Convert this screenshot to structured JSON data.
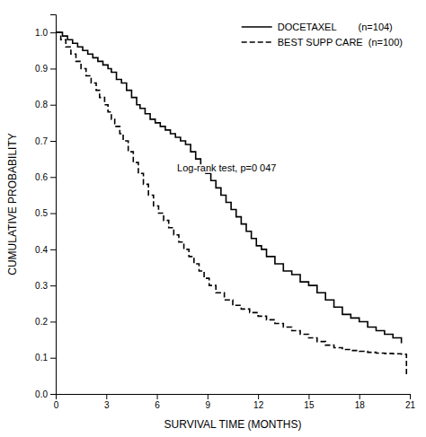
{
  "chart_data": {
    "type": "step",
    "xlabel": "SURVIVAL TIME (MONTHS)",
    "ylabel": "CUMULATIVE PROBABILITY",
    "xlim": [
      0,
      21
    ],
    "ylim": [
      0.0,
      1.05
    ],
    "xticks": [
      0,
      3,
      6,
      9,
      12,
      15,
      18,
      21
    ],
    "yticks": [
      {
        "value": 0.0,
        "label": "0.0"
      },
      0.1,
      0.2,
      0.3,
      0.4,
      0.5,
      0.6,
      0.7,
      0.8,
      0.9,
      {
        "value": 1.0,
        "label": "1.0"
      }
    ],
    "grid": false,
    "legend": "upper right",
    "annotations": [
      {
        "text": "Log-rank test, p=0 047",
        "x": 7.2,
        "y": 0.615
      }
    ],
    "series": [
      {
        "name": "DOCETAXEL        (n=104)",
        "color": "#000000",
        "line_style": "solid",
        "x": [
          0,
          0.4,
          0.7,
          1.0,
          1.3,
          1.6,
          1.9,
          2.2,
          2.5,
          2.8,
          3.1,
          3.3,
          3.6,
          3.9,
          4.2,
          4.5,
          4.8,
          5.0,
          5.3,
          5.6,
          5.9,
          6.2,
          6.5,
          6.8,
          7.1,
          7.4,
          7.7,
          8.0,
          8.3,
          8.6,
          8.9,
          9.2,
          9.5,
          9.8,
          10.1,
          10.4,
          10.7,
          11.0,
          11.3,
          11.6,
          11.9,
          12.2,
          12.5,
          13.0,
          13.5,
          14.0,
          14.5,
          15.0,
          15.5,
          16.0,
          16.5,
          17.0,
          17.5,
          18.0,
          18.5,
          19.0,
          19.5,
          20.0,
          20.5
        ],
        "values": [
          1.0,
          0.99,
          0.98,
          0.97,
          0.96,
          0.95,
          0.94,
          0.93,
          0.92,
          0.91,
          0.9,
          0.89,
          0.87,
          0.86,
          0.84,
          0.82,
          0.8,
          0.79,
          0.775,
          0.76,
          0.75,
          0.74,
          0.73,
          0.72,
          0.71,
          0.7,
          0.69,
          0.67,
          0.65,
          0.63,
          0.61,
          0.59,
          0.57,
          0.55,
          0.53,
          0.51,
          0.49,
          0.47,
          0.45,
          0.43,
          0.41,
          0.4,
          0.38,
          0.36,
          0.34,
          0.33,
          0.31,
          0.3,
          0.28,
          0.26,
          0.24,
          0.22,
          0.21,
          0.2,
          0.185,
          0.175,
          0.165,
          0.155,
          0.14
        ]
      },
      {
        "name": "BEST SUPP CARE  (n=100)",
        "color": "#000000",
        "line_style": "dashed",
        "x": [
          0,
          0.3,
          0.6,
          0.9,
          1.2,
          1.5,
          1.8,
          2.1,
          2.4,
          2.6,
          2.9,
          3.1,
          3.3,
          3.5,
          3.8,
          4.0,
          4.3,
          4.6,
          4.9,
          5.2,
          5.5,
          5.8,
          6.1,
          6.4,
          6.7,
          7.0,
          7.3,
          7.6,
          7.9,
          8.2,
          8.5,
          8.8,
          9.1,
          9.5,
          10.0,
          10.5,
          11.0,
          11.5,
          12.0,
          12.5,
          13.0,
          13.5,
          14.0,
          14.5,
          15.0,
          15.5,
          16.0,
          16.5,
          17.0,
          17.5,
          18.0,
          18.5,
          19.0,
          19.5,
          20.0,
          20.5,
          20.8
        ],
        "values": [
          1.0,
          0.98,
          0.96,
          0.94,
          0.92,
          0.9,
          0.88,
          0.86,
          0.84,
          0.82,
          0.8,
          0.78,
          0.76,
          0.74,
          0.72,
          0.7,
          0.67,
          0.64,
          0.61,
          0.58,
          0.55,
          0.52,
          0.5,
          0.48,
          0.46,
          0.44,
          0.42,
          0.4,
          0.38,
          0.36,
          0.34,
          0.32,
          0.3,
          0.28,
          0.26,
          0.245,
          0.235,
          0.225,
          0.215,
          0.205,
          0.195,
          0.185,
          0.175,
          0.165,
          0.155,
          0.145,
          0.135,
          0.128,
          0.123,
          0.12,
          0.118,
          0.115,
          0.113,
          0.112,
          0.111,
          0.11,
          0.05
        ]
      }
    ]
  }
}
